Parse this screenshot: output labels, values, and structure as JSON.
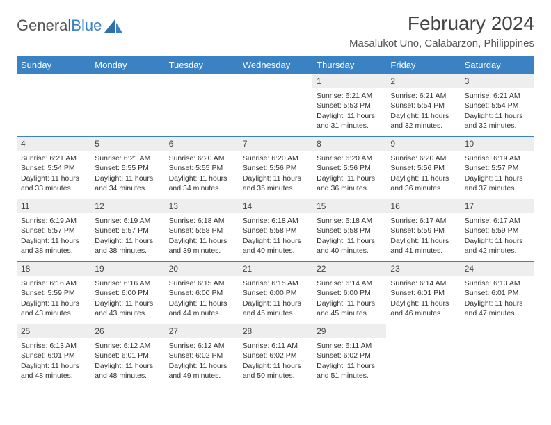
{
  "brand": {
    "part1": "General",
    "part2": "Blue"
  },
  "title": "February 2024",
  "location": "Masalukot Uno, Calabarzon, Philippines",
  "colors": {
    "header_bg": "#3b82c4",
    "header_text": "#ffffff",
    "daynum_bg": "#eeeeee",
    "border": "#3b82c4",
    "text": "#333333",
    "page_bg": "#ffffff"
  },
  "weekdays": [
    "Sunday",
    "Monday",
    "Tuesday",
    "Wednesday",
    "Thursday",
    "Friday",
    "Saturday"
  ],
  "weeks": [
    [
      {
        "n": "",
        "sr": "",
        "ss": "",
        "d1": "",
        "d2": ""
      },
      {
        "n": "",
        "sr": "",
        "ss": "",
        "d1": "",
        "d2": ""
      },
      {
        "n": "",
        "sr": "",
        "ss": "",
        "d1": "",
        "d2": ""
      },
      {
        "n": "",
        "sr": "",
        "ss": "",
        "d1": "",
        "d2": ""
      },
      {
        "n": "1",
        "sr": "Sunrise: 6:21 AM",
        "ss": "Sunset: 5:53 PM",
        "d1": "Daylight: 11 hours",
        "d2": "and 31 minutes."
      },
      {
        "n": "2",
        "sr": "Sunrise: 6:21 AM",
        "ss": "Sunset: 5:54 PM",
        "d1": "Daylight: 11 hours",
        "d2": "and 32 minutes."
      },
      {
        "n": "3",
        "sr": "Sunrise: 6:21 AM",
        "ss": "Sunset: 5:54 PM",
        "d1": "Daylight: 11 hours",
        "d2": "and 32 minutes."
      }
    ],
    [
      {
        "n": "4",
        "sr": "Sunrise: 6:21 AM",
        "ss": "Sunset: 5:54 PM",
        "d1": "Daylight: 11 hours",
        "d2": "and 33 minutes."
      },
      {
        "n": "5",
        "sr": "Sunrise: 6:21 AM",
        "ss": "Sunset: 5:55 PM",
        "d1": "Daylight: 11 hours",
        "d2": "and 34 minutes."
      },
      {
        "n": "6",
        "sr": "Sunrise: 6:20 AM",
        "ss": "Sunset: 5:55 PM",
        "d1": "Daylight: 11 hours",
        "d2": "and 34 minutes."
      },
      {
        "n": "7",
        "sr": "Sunrise: 6:20 AM",
        "ss": "Sunset: 5:56 PM",
        "d1": "Daylight: 11 hours",
        "d2": "and 35 minutes."
      },
      {
        "n": "8",
        "sr": "Sunrise: 6:20 AM",
        "ss": "Sunset: 5:56 PM",
        "d1": "Daylight: 11 hours",
        "d2": "and 36 minutes."
      },
      {
        "n": "9",
        "sr": "Sunrise: 6:20 AM",
        "ss": "Sunset: 5:56 PM",
        "d1": "Daylight: 11 hours",
        "d2": "and 36 minutes."
      },
      {
        "n": "10",
        "sr": "Sunrise: 6:19 AM",
        "ss": "Sunset: 5:57 PM",
        "d1": "Daylight: 11 hours",
        "d2": "and 37 minutes."
      }
    ],
    [
      {
        "n": "11",
        "sr": "Sunrise: 6:19 AM",
        "ss": "Sunset: 5:57 PM",
        "d1": "Daylight: 11 hours",
        "d2": "and 38 minutes."
      },
      {
        "n": "12",
        "sr": "Sunrise: 6:19 AM",
        "ss": "Sunset: 5:57 PM",
        "d1": "Daylight: 11 hours",
        "d2": "and 38 minutes."
      },
      {
        "n": "13",
        "sr": "Sunrise: 6:18 AM",
        "ss": "Sunset: 5:58 PM",
        "d1": "Daylight: 11 hours",
        "d2": "and 39 minutes."
      },
      {
        "n": "14",
        "sr": "Sunrise: 6:18 AM",
        "ss": "Sunset: 5:58 PM",
        "d1": "Daylight: 11 hours",
        "d2": "and 40 minutes."
      },
      {
        "n": "15",
        "sr": "Sunrise: 6:18 AM",
        "ss": "Sunset: 5:58 PM",
        "d1": "Daylight: 11 hours",
        "d2": "and 40 minutes."
      },
      {
        "n": "16",
        "sr": "Sunrise: 6:17 AM",
        "ss": "Sunset: 5:59 PM",
        "d1": "Daylight: 11 hours",
        "d2": "and 41 minutes."
      },
      {
        "n": "17",
        "sr": "Sunrise: 6:17 AM",
        "ss": "Sunset: 5:59 PM",
        "d1": "Daylight: 11 hours",
        "d2": "and 42 minutes."
      }
    ],
    [
      {
        "n": "18",
        "sr": "Sunrise: 6:16 AM",
        "ss": "Sunset: 5:59 PM",
        "d1": "Daylight: 11 hours",
        "d2": "and 43 minutes."
      },
      {
        "n": "19",
        "sr": "Sunrise: 6:16 AM",
        "ss": "Sunset: 6:00 PM",
        "d1": "Daylight: 11 hours",
        "d2": "and 43 minutes."
      },
      {
        "n": "20",
        "sr": "Sunrise: 6:15 AM",
        "ss": "Sunset: 6:00 PM",
        "d1": "Daylight: 11 hours",
        "d2": "and 44 minutes."
      },
      {
        "n": "21",
        "sr": "Sunrise: 6:15 AM",
        "ss": "Sunset: 6:00 PM",
        "d1": "Daylight: 11 hours",
        "d2": "and 45 minutes."
      },
      {
        "n": "22",
        "sr": "Sunrise: 6:14 AM",
        "ss": "Sunset: 6:00 PM",
        "d1": "Daylight: 11 hours",
        "d2": "and 45 minutes."
      },
      {
        "n": "23",
        "sr": "Sunrise: 6:14 AM",
        "ss": "Sunset: 6:01 PM",
        "d1": "Daylight: 11 hours",
        "d2": "and 46 minutes."
      },
      {
        "n": "24",
        "sr": "Sunrise: 6:13 AM",
        "ss": "Sunset: 6:01 PM",
        "d1": "Daylight: 11 hours",
        "d2": "and 47 minutes."
      }
    ],
    [
      {
        "n": "25",
        "sr": "Sunrise: 6:13 AM",
        "ss": "Sunset: 6:01 PM",
        "d1": "Daylight: 11 hours",
        "d2": "and 48 minutes."
      },
      {
        "n": "26",
        "sr": "Sunrise: 6:12 AM",
        "ss": "Sunset: 6:01 PM",
        "d1": "Daylight: 11 hours",
        "d2": "and 48 minutes."
      },
      {
        "n": "27",
        "sr": "Sunrise: 6:12 AM",
        "ss": "Sunset: 6:02 PM",
        "d1": "Daylight: 11 hours",
        "d2": "and 49 minutes."
      },
      {
        "n": "28",
        "sr": "Sunrise: 6:11 AM",
        "ss": "Sunset: 6:02 PM",
        "d1": "Daylight: 11 hours",
        "d2": "and 50 minutes."
      },
      {
        "n": "29",
        "sr": "Sunrise: 6:11 AM",
        "ss": "Sunset: 6:02 PM",
        "d1": "Daylight: 11 hours",
        "d2": "and 51 minutes."
      },
      {
        "n": "",
        "sr": "",
        "ss": "",
        "d1": "",
        "d2": ""
      },
      {
        "n": "",
        "sr": "",
        "ss": "",
        "d1": "",
        "d2": ""
      }
    ]
  ]
}
